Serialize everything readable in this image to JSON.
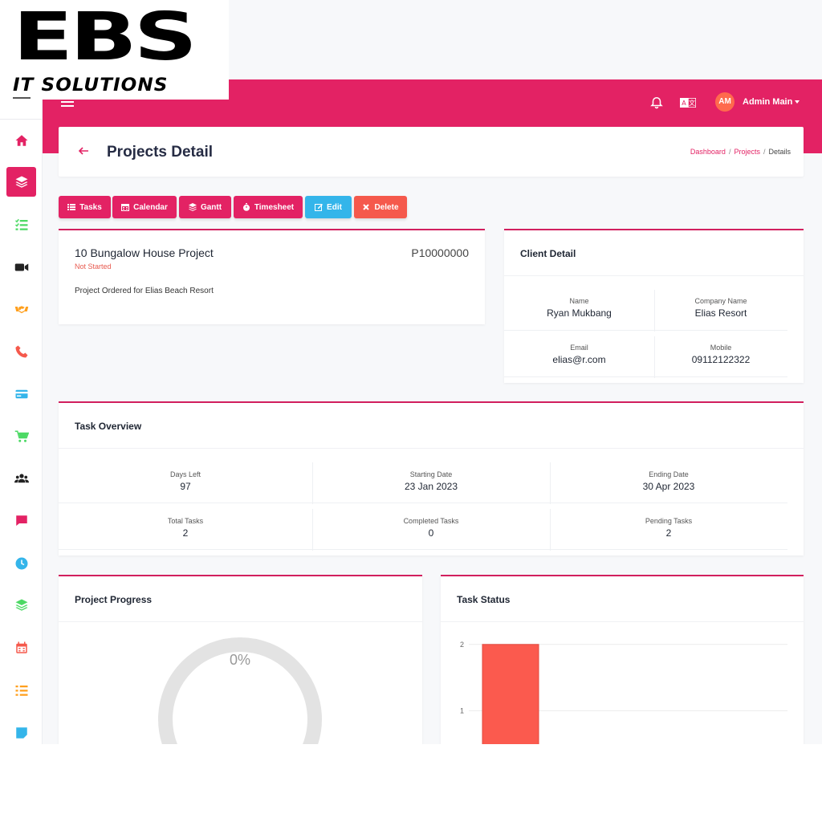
{
  "logo": {
    "main": "EBS",
    "sub": "IT SOLUTIONS"
  },
  "header": {
    "icons": [
      "menu-icon",
      "bell-icon",
      "language-icon"
    ],
    "avatar_initials": "AM",
    "user_name": "Admin Main",
    "color": "#e32264"
  },
  "sidebar": {
    "items": [
      {
        "icon": "home-icon",
        "color": "#e32264",
        "active": false
      },
      {
        "icon": "layers-icon",
        "color": "#ffffff",
        "active": true
      },
      {
        "icon": "tasks-icon",
        "color": "#4cd964",
        "active": false
      },
      {
        "icon": "video-icon",
        "color": "#222222",
        "active": false
      },
      {
        "icon": "handshake-icon",
        "color": "#ff9f1c",
        "active": false
      },
      {
        "icon": "phone-icon",
        "color": "#f5594c",
        "active": false
      },
      {
        "icon": "credit-card-icon",
        "color": "#34b5ea",
        "active": false
      },
      {
        "icon": "cart-icon",
        "color": "#4cd964",
        "active": false
      },
      {
        "icon": "users-icon",
        "color": "#222222",
        "active": false
      },
      {
        "icon": "chat-icon",
        "color": "#e32264",
        "active": false
      },
      {
        "icon": "clock-icon",
        "color": "#34b5ea",
        "active": false
      },
      {
        "icon": "layers-icon",
        "color": "#4cd964",
        "active": false
      },
      {
        "icon": "calendar-icon",
        "color": "#f5594c",
        "active": false
      },
      {
        "icon": "list-icon",
        "color": "#ff9f1c",
        "active": false
      },
      {
        "icon": "note-icon",
        "color": "#34b5ea",
        "active": false
      }
    ]
  },
  "page": {
    "title": "Projects Detail",
    "breadcrumb": [
      "Dashboard",
      "Projects",
      "Details"
    ]
  },
  "actions": [
    {
      "label": "Tasks",
      "icon": "tasks-icon",
      "color": "pink"
    },
    {
      "label": "Calendar",
      "icon": "calendar-icon",
      "color": "pink"
    },
    {
      "label": "Gantt",
      "icon": "layers-icon",
      "color": "pink"
    },
    {
      "label": "Timesheet",
      "icon": "stopwatch-icon",
      "color": "pink"
    },
    {
      "label": "Edit",
      "icon": "edit-icon",
      "color": "blue"
    },
    {
      "label": "Delete",
      "icon": "close-icon",
      "color": "red"
    }
  ],
  "project": {
    "name": "10 Bungalow House Project",
    "code": "P10000000",
    "status": "Not Started",
    "description": "Project Ordered for Elias Beach Resort"
  },
  "client": {
    "title": "Client Detail",
    "fields": [
      {
        "label": "Name",
        "value": "Ryan Mukbang"
      },
      {
        "label": "Company Name",
        "value": "Elias Resort"
      },
      {
        "label": "Email",
        "value": "elias@r.com"
      },
      {
        "label": "Mobile",
        "value": "09112122322"
      }
    ]
  },
  "overview": {
    "title": "Task Overview",
    "stats": [
      {
        "label": "Days Left",
        "value": "97"
      },
      {
        "label": "Starting Date",
        "value": "23 Jan 2023"
      },
      {
        "label": "Ending Date",
        "value": "30 Apr 2023"
      },
      {
        "label": "Total Tasks",
        "value": "2"
      },
      {
        "label": "Completed Tasks",
        "value": "0"
      },
      {
        "label": "Pending Tasks",
        "value": "2"
      }
    ]
  },
  "progress": {
    "title": "Project Progress",
    "value_label": "0%",
    "value": 0
  },
  "task_status": {
    "title": "Task Status"
  },
  "chart_data": {
    "type": "bar",
    "title": "",
    "categories": [
      ""
    ],
    "values": [
      2
    ],
    "y_ticks": [
      "1",
      "2"
    ],
    "ylim": [
      0,
      2.3
    ],
    "bar_color": "#fb5a4e",
    "grid": true
  }
}
